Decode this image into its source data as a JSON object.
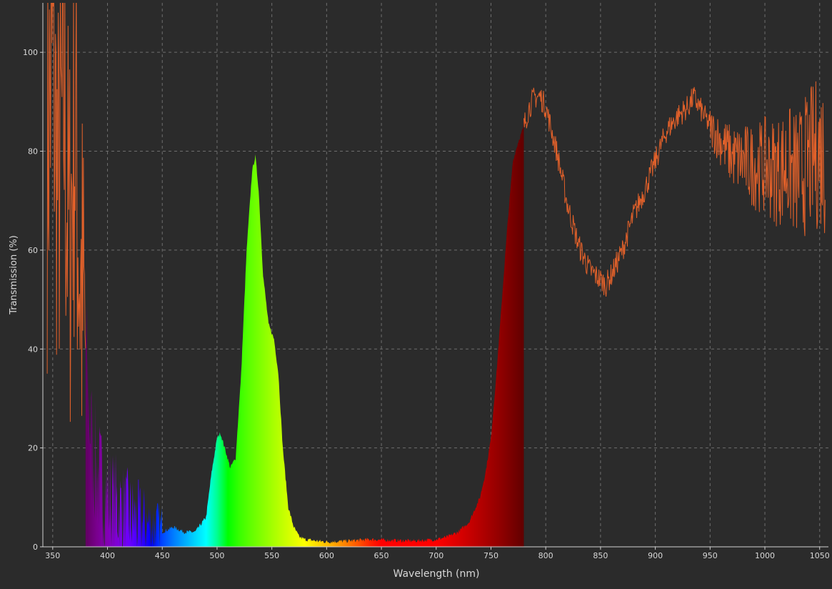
{
  "chart_data": {
    "type": "line",
    "title": "",
    "xlabel": "Wavelength (nm)",
    "ylabel": "Transmission (%)",
    "xlim": [
      341,
      1058
    ],
    "ylim": [
      0,
      110
    ],
    "x_ticks": [
      350,
      400,
      450,
      500,
      550,
      600,
      650,
      700,
      750,
      800,
      850,
      900,
      950,
      1000,
      1050
    ],
    "y_ticks": [
      0,
      20,
      40,
      60,
      80,
      100
    ],
    "grid": true,
    "legend": "none",
    "colors": {
      "background": "#2b2b2b",
      "grid": "#6e6e6e",
      "axis": "#d0d0d0",
      "text": "#d8d8d8",
      "line": "#e0602a"
    },
    "fill_under_curve": "visible-spectrum-gradient",
    "fill_range": [
      380,
      780
    ],
    "series": [
      {
        "x": [
          345,
          350,
          355,
          360,
          365,
          370,
          375,
          380,
          385,
          390,
          395,
          400,
          410,
          420,
          430,
          440,
          450,
          460,
          470,
          480,
          490,
          495,
          500,
          503,
          507,
          512,
          517,
          522,
          527,
          532,
          535,
          538,
          542,
          547,
          552,
          556,
          560,
          565,
          570,
          575,
          580,
          590,
          600,
          620,
          640,
          660,
          680,
          700,
          710,
          720,
          730,
          740,
          745,
          750,
          755,
          760,
          765,
          770,
          775,
          780,
          785,
          790,
          795,
          800,
          810,
          820,
          830,
          840,
          850,
          855,
          860,
          870,
          880,
          890,
          900,
          910,
          920,
          930,
          935,
          940,
          950,
          960,
          970,
          980,
          990,
          1000,
          1010,
          1020,
          1030,
          1040,
          1050,
          1055
        ],
        "y": [
          80,
          100,
          70,
          90,
          60,
          85,
          55,
          40,
          22,
          15,
          12,
          10,
          8,
          6,
          5,
          4,
          3,
          4,
          3,
          3,
          6,
          15,
          22,
          23,
          20,
          16,
          18,
          35,
          60,
          76,
          79,
          72,
          55,
          45,
          42,
          35,
          20,
          8,
          4,
          2,
          1.5,
          1.2,
          1,
          1.2,
          1.5,
          1.3,
          1.2,
          1.5,
          2,
          3,
          5,
          10,
          15,
          22,
          35,
          50,
          65,
          78,
          82,
          85,
          89,
          91,
          91,
          89,
          80,
          69,
          61,
          56,
          54,
          53,
          55,
          60,
          67,
          72,
          78,
          84,
          87,
          89,
          91,
          89,
          85,
          82,
          79,
          78,
          77,
          77,
          76,
          77,
          75,
          78,
          80,
          79
        ]
      }
    ]
  }
}
